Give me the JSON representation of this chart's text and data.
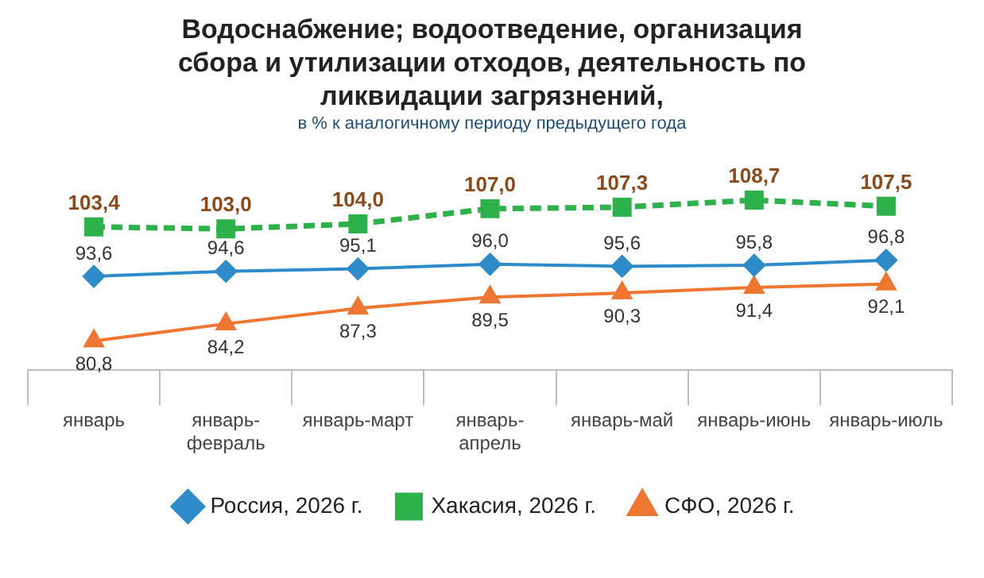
{
  "chart_data": {
    "type": "line",
    "title": "Водоснабжение; водоотведение, организация сбора и утилизации отходов, деятельность по ликвидации загрязнений,",
    "subtitle": "в % к аналогичному периоду предыдущего года",
    "categories": [
      "январь",
      "январь-февраль",
      "январь-март",
      "январь-апрель",
      "январь-май",
      "январь-июнь",
      "январь-июль"
    ],
    "series": [
      {
        "name": "Россия, 2026 г.",
        "color": "#2e8bc9",
        "marker": "diamond",
        "line_style": "solid",
        "values": [
          93.6,
          94.6,
          95.1,
          96.0,
          95.6,
          95.8,
          96.8
        ],
        "value_labels": [
          "93,6",
          "94,6",
          "95,1",
          "96,0",
          "95,6",
          "95,8",
          "96,8"
        ]
      },
      {
        "name": "Хакасия, 2026 г.",
        "color": "#2db14a",
        "marker": "square",
        "line_style": "dashed",
        "values": [
          103.4,
          103.0,
          104.0,
          107.0,
          107.3,
          108.7,
          107.5
        ],
        "value_labels": [
          "103,4",
          "103,0",
          "104,0",
          "107,0",
          "107,3",
          "108,7",
          "107,5"
        ]
      },
      {
        "name": "СФО, 2026 г.",
        "color": "#ee7631",
        "marker": "triangle",
        "line_style": "solid",
        "values": [
          80.8,
          84.2,
          87.3,
          89.5,
          90.3,
          91.4,
          92.1
        ],
        "value_labels": [
          "80,8",
          "84,2",
          "87,3",
          "89,5",
          "90,3",
          "91,4",
          "92,1"
        ]
      }
    ],
    "tick_labels": "x",
    "grid": false,
    "legend": "bottom"
  }
}
